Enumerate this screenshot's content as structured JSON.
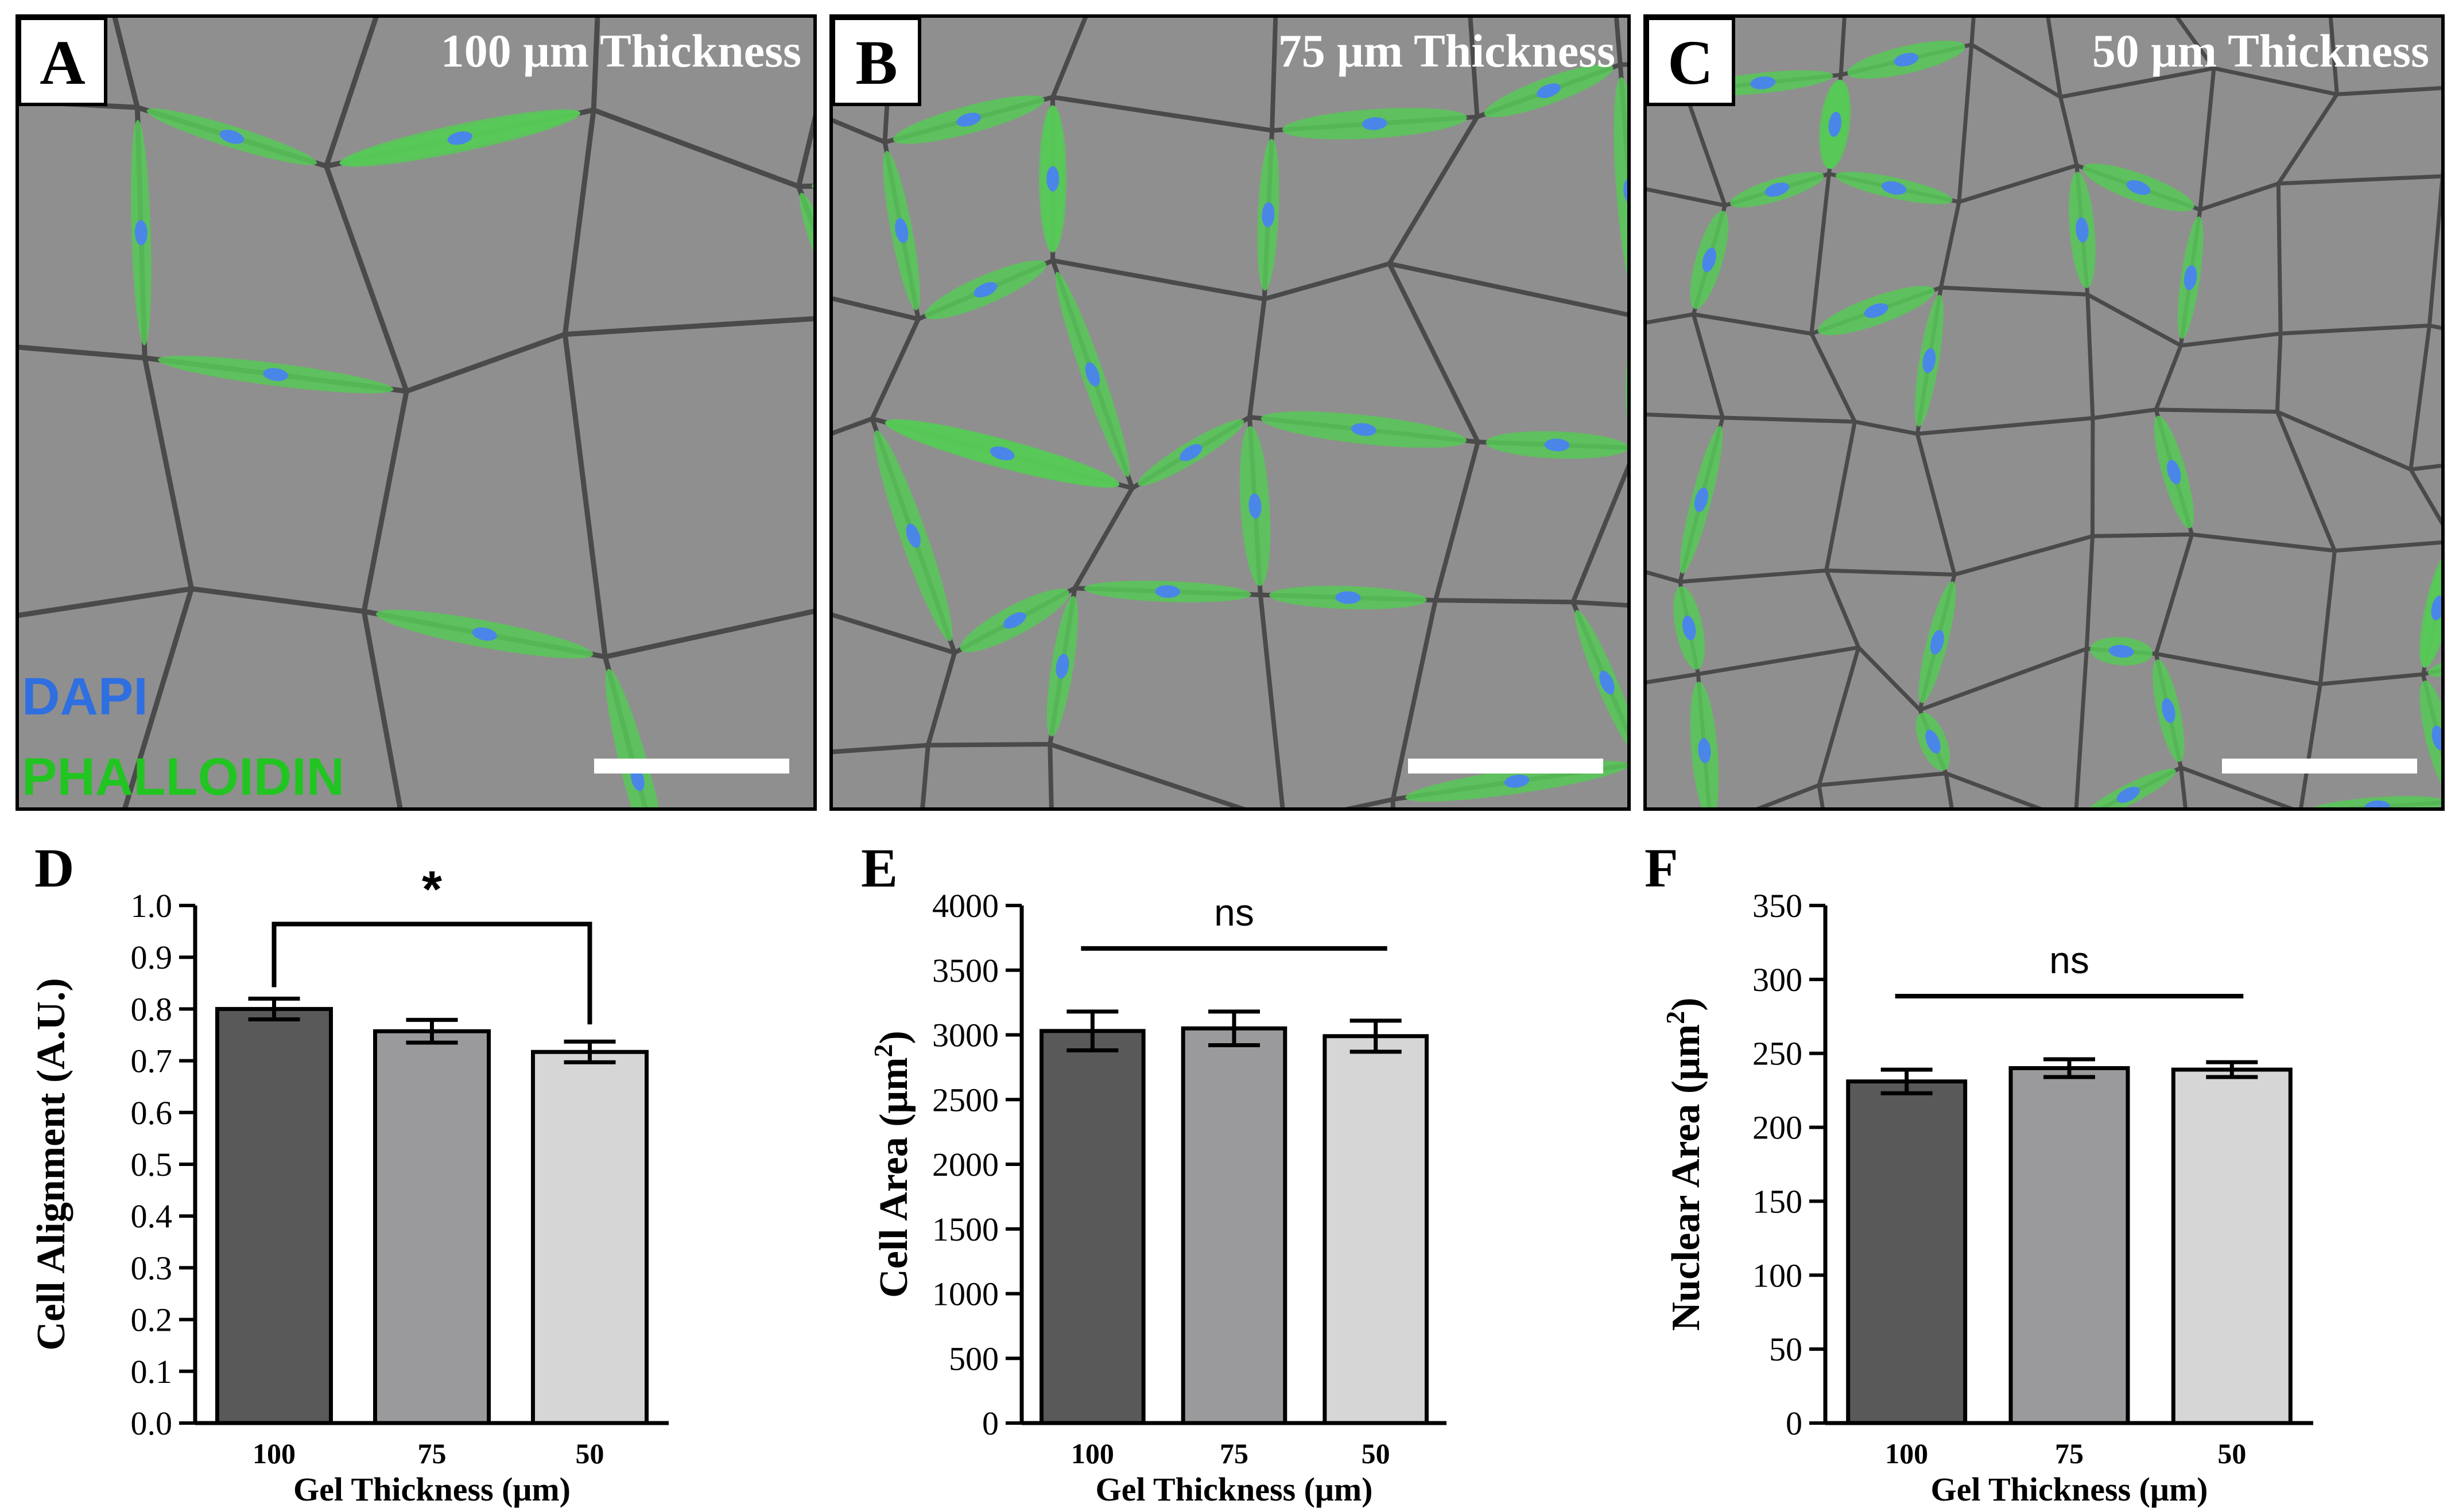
{
  "panels": [
    {
      "letter": "A",
      "label": "100 μm Thickness"
    },
    {
      "letter": "B",
      "label": "75 μm Thickness"
    },
    {
      "letter": "C",
      "label": "50 μm Thickness"
    }
  ],
  "stain_legend": [
    {
      "label": "DAPI",
      "color": "#2f6fe0"
    },
    {
      "label": "PHALLOIDIN",
      "color": "#22c422"
    }
  ],
  "colors": {
    "micrograph_bg": "#8f8f8f",
    "network_lines": "#4a4a4a",
    "cell_fill": "#57c957",
    "nucleus": "#4a86e8",
    "scale_bar": "#ffffff",
    "bar_100": "#595959",
    "bar_75": "#9a9a9c",
    "bar_50": "#d6d6d6"
  },
  "chart_data": [
    {
      "letter": "D",
      "type": "bar",
      "categories": [
        "100",
        "75",
        "50"
      ],
      "values": [
        0.8,
        0.757,
        0.717
      ],
      "errors": [
        0.02,
        0.022,
        0.02
      ],
      "ylim": [
        0,
        1.0
      ],
      "yticks": [
        "0.0",
        "0.1",
        "0.2",
        "0.3",
        "0.4",
        "0.5",
        "0.6",
        "0.7",
        "0.8",
        "0.9",
        "1.0"
      ],
      "ylabel": "Cell Alignment (A.U.)",
      "ylabel_sup": "",
      "ylabel_tail": "",
      "xlabel": "Gel Thickness (μm)",
      "significance": {
        "label": "*",
        "from": "100",
        "to": "50",
        "style": "bracket"
      }
    },
    {
      "letter": "E",
      "type": "bar",
      "categories": [
        "100",
        "75",
        "50"
      ],
      "values": [
        3030,
        3050,
        2990
      ],
      "errors": [
        150,
        130,
        120
      ],
      "ylim": [
        0,
        4000
      ],
      "yticks": [
        "0",
        "500",
        "1000",
        "1500",
        "2000",
        "2500",
        "3000",
        "3500",
        "4000"
      ],
      "ylabel": "Cell Area (μm",
      "ylabel_sup": "2",
      "ylabel_tail": ")",
      "xlabel": "Gel Thickness (μm)",
      "significance": {
        "label": "ns",
        "from": "100",
        "to": "50",
        "style": "line"
      }
    },
    {
      "letter": "F",
      "type": "bar",
      "categories": [
        "100",
        "75",
        "50"
      ],
      "values": [
        231,
        240,
        239
      ],
      "errors": [
        8,
        6,
        5
      ],
      "ylim": [
        0,
        350
      ],
      "yticks": [
        "0",
        "50",
        "100",
        "150",
        "200",
        "250",
        "300",
        "350"
      ],
      "ylabel": "Nuclear Area (μm",
      "ylabel_sup": "2",
      "ylabel_tail": ")",
      "xlabel": "Gel Thickness (μm)",
      "significance": {
        "label": "ns",
        "from": "100",
        "to": "50",
        "style": "line"
      }
    }
  ]
}
